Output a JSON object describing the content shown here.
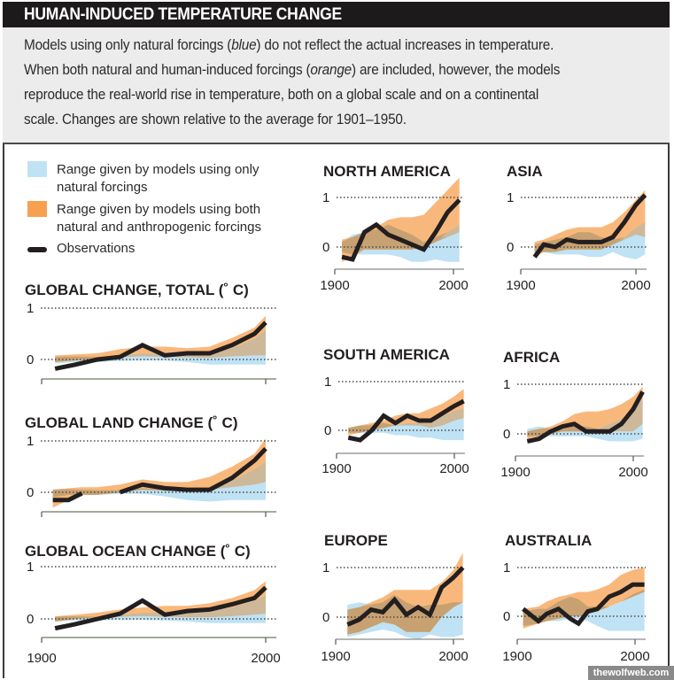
{
  "header": {
    "title": "HUMAN-INDUCED TEMPERATURE CHANGE",
    "description_lines": [
      [
        "Models using only natural forcings (",
        "blue",
        ") do not reflect the actual increases in temperature."
      ],
      [
        "When both natural and human-induced forcings (",
        "orange",
        ") are included, however, the models"
      ],
      [
        "reproduce the real-world rise in temperature, both on a global scale and on a continental",
        "",
        ""
      ],
      [
        "scale. Changes are shown relative to the average for 1901–1950.",
        "",
        ""
      ]
    ]
  },
  "legend": {
    "items": [
      {
        "label_lines": [
          "Range given by models using only",
          "natural forcings"
        ],
        "color": "#bfe3f5",
        "kind": "natural"
      },
      {
        "label_lines": [
          "Range given by models using both",
          "natural and anthropogenic forcings"
        ],
        "color": "#f7a04f",
        "kind": "anthropogenic"
      },
      {
        "label_lines": [
          "Observations"
        ],
        "color": "#231f20",
        "kind": "observations"
      }
    ]
  },
  "colors": {
    "natural": "#aad8f0",
    "anthropogenic": "#f7a04f",
    "overlap": "#b89a6e",
    "observations": "#231f20",
    "gridline": "#4a4a4a",
    "axis": "#6b7a5a"
  },
  "watermark": "thewolfweb.com",
  "chart_data": [
    {
      "type": "area",
      "id": "global-total",
      "title": "GLOBAL CHANGE, TOTAL (˚ C)",
      "xlabel": "",
      "ylabel": "˚C",
      "xlim": [
        1900,
        2000
      ],
      "ylim": [
        0,
        1
      ],
      "y_ticks": [
        0,
        1
      ],
      "x_ticks": [],
      "x": [
        1906,
        1915,
        1925,
        1935,
        1945,
        1955,
        1965,
        1975,
        1985,
        1995,
        2000
      ],
      "series": [
        {
          "name": "Observations",
          "values": [
            -0.18,
            -0.1,
            0.0,
            0.05,
            0.28,
            0.08,
            0.12,
            0.12,
            0.28,
            0.5,
            0.72
          ]
        },
        {
          "name": "Natural+anthropogenic range",
          "lower": [
            -0.05,
            -0.02,
            0.02,
            0.08,
            0.12,
            0.1,
            0.1,
            0.1,
            0.22,
            0.4,
            0.58
          ],
          "upper": [
            0.08,
            0.1,
            0.12,
            0.2,
            0.25,
            0.25,
            0.22,
            0.25,
            0.42,
            0.62,
            0.85
          ]
        },
        {
          "name": "Natural range",
          "lower": [
            -0.08,
            -0.05,
            -0.05,
            -0.03,
            -0.02,
            -0.02,
            -0.05,
            -0.1,
            -0.1,
            -0.1,
            -0.1
          ],
          "upper": [
            0.05,
            0.06,
            0.05,
            0.04,
            0.06,
            0.05,
            0.04,
            0.03,
            0.06,
            0.08,
            0.08
          ]
        }
      ]
    },
    {
      "type": "area",
      "id": "global-land",
      "title": "GLOBAL LAND CHANGE (˚ C)",
      "xlim": [
        1900,
        2000
      ],
      "ylim": [
        0,
        1
      ],
      "y_ticks": [
        0,
        1
      ],
      "x_ticks": [],
      "x": [
        1905,
        1912,
        1918,
        1925,
        1935,
        1945,
        1955,
        1965,
        1975,
        1985,
        1995,
        2000
      ],
      "series": [
        {
          "name": "Observations",
          "values": [
            -0.15,
            -0.15,
            -0.02,
            null,
            0.0,
            0.15,
            0.08,
            0.05,
            0.05,
            0.28,
            0.62,
            0.85
          ]
        },
        {
          "name": "Natural+anthropogenic range",
          "lower": [
            -0.3,
            -0.15,
            -0.05,
            -0.05,
            0.0,
            0.05,
            0.03,
            0.02,
            0.05,
            0.22,
            0.45,
            0.6
          ],
          "upper": [
            0.05,
            0.08,
            0.1,
            0.1,
            0.15,
            0.25,
            0.2,
            0.2,
            0.3,
            0.5,
            0.75,
            1.05
          ]
        },
        {
          "name": "Natural range",
          "lower": [
            -0.1,
            -0.05,
            -0.05,
            -0.05,
            -0.03,
            -0.03,
            -0.08,
            -0.15,
            -0.18,
            -0.15,
            -0.15,
            -0.15
          ],
          "upper": [
            0.06,
            0.06,
            0.05,
            0.04,
            0.04,
            0.08,
            0.05,
            0.05,
            0.05,
            0.1,
            0.15,
            0.2
          ]
        }
      ]
    },
    {
      "type": "area",
      "id": "global-ocean",
      "title": "GLOBAL OCEAN CHANGE (˚ C)",
      "xlim": [
        1900,
        2000
      ],
      "ylim": [
        0,
        1
      ],
      "y_ticks": [
        0,
        1
      ],
      "x_ticks": [
        "1900",
        "2000"
      ],
      "x": [
        1906,
        1915,
        1925,
        1935,
        1945,
        1955,
        1965,
        1975,
        1985,
        1995,
        2000
      ],
      "series": [
        {
          "name": "Observations",
          "values": [
            -0.18,
            -0.1,
            0.0,
            0.1,
            0.35,
            0.08,
            0.15,
            0.18,
            0.28,
            0.4,
            0.6
          ]
        },
        {
          "name": "Natural+anthropogenic range",
          "lower": [
            -0.05,
            0.0,
            0.03,
            0.08,
            0.12,
            0.12,
            0.12,
            0.15,
            0.22,
            0.35,
            0.45
          ],
          "upper": [
            0.05,
            0.08,
            0.12,
            0.18,
            0.22,
            0.25,
            0.25,
            0.3,
            0.4,
            0.55,
            0.72
          ]
        },
        {
          "name": "Natural range",
          "lower": [
            -0.05,
            -0.03,
            -0.03,
            -0.02,
            -0.02,
            -0.03,
            -0.05,
            -0.08,
            -0.08,
            -0.08,
            -0.08
          ],
          "upper": [
            0.04,
            0.05,
            0.04,
            0.04,
            0.05,
            0.04,
            0.03,
            0.03,
            0.05,
            0.08,
            0.1
          ]
        }
      ]
    },
    {
      "type": "area",
      "id": "north-america",
      "title": "NORTH AMERICA",
      "xlim": [
        1900,
        2000
      ],
      "ylim": [
        0,
        1
      ],
      "y_ticks": [
        0,
        1
      ],
      "x_ticks": [
        "1900",
        "2000"
      ],
      "x": [
        1906,
        1915,
        1925,
        1935,
        1945,
        1955,
        1965,
        1975,
        1985,
        1995,
        2005
      ],
      "series": [
        {
          "name": "Observations",
          "values": [
            -0.2,
            -0.25,
            0.3,
            0.45,
            0.25,
            0.15,
            0.05,
            -0.05,
            0.3,
            0.7,
            0.95
          ]
        },
        {
          "name": "Natural+anthropogenic range",
          "lower": [
            -0.3,
            -0.2,
            -0.05,
            -0.05,
            -0.05,
            -0.05,
            -0.05,
            0.0,
            0.1,
            0.3,
            0.45
          ],
          "upper": [
            0.15,
            0.2,
            0.3,
            0.4,
            0.55,
            0.6,
            0.6,
            0.65,
            0.9,
            1.15,
            1.4
          ]
        },
        {
          "name": "Natural range",
          "lower": [
            -0.1,
            -0.15,
            -0.15,
            -0.15,
            -0.15,
            -0.2,
            -0.3,
            -0.3,
            -0.25,
            -0.3,
            -0.3
          ],
          "upper": [
            0.1,
            0.25,
            0.3,
            0.35,
            0.45,
            0.35,
            0.25,
            0.1,
            0.2,
            0.2,
            0.3
          ]
        }
      ]
    },
    {
      "type": "area",
      "id": "asia",
      "title": "ASIA",
      "xlim": [
        1900,
        2000
      ],
      "ylim": [
        0,
        1
      ],
      "y_ticks": [
        0,
        1
      ],
      "x_ticks": [
        "1900",
        "2000"
      ],
      "x": [
        1912,
        1920,
        1930,
        1940,
        1950,
        1960,
        1970,
        1980,
        1990,
        2000,
        2008
      ],
      "series": [
        {
          "name": "Observations",
          "values": [
            -0.2,
            0.05,
            0.0,
            0.15,
            0.1,
            0.1,
            0.1,
            0.2,
            0.5,
            0.85,
            1.05
          ]
        },
        {
          "name": "Natural+anthropogenic range",
          "lower": [
            -0.2,
            -0.1,
            -0.1,
            -0.05,
            -0.05,
            -0.05,
            -0.05,
            0.05,
            0.2,
            0.4,
            0.5
          ],
          "upper": [
            0.1,
            0.15,
            0.25,
            0.35,
            0.4,
            0.4,
            0.4,
            0.5,
            0.7,
            0.95,
            1.15
          ]
        },
        {
          "name": "Natural range",
          "lower": [
            -0.1,
            -0.1,
            -0.15,
            -0.15,
            -0.15,
            -0.2,
            -0.2,
            -0.1,
            -0.2,
            -0.25,
            -0.15
          ],
          "upper": [
            0.05,
            0.1,
            0.15,
            0.2,
            0.3,
            0.3,
            0.2,
            0.15,
            0.15,
            0.25,
            0.2
          ]
        }
      ]
    },
    {
      "type": "area",
      "id": "south-america",
      "title": "SOUTH AMERICA",
      "xlim": [
        1900,
        2000
      ],
      "ylim": [
        0,
        1
      ],
      "y_ticks": [
        0,
        1
      ],
      "x_ticks": [
        "1900",
        "2000"
      ],
      "x": [
        1910,
        1920,
        1930,
        1940,
        1950,
        1960,
        1970,
        1980,
        1990,
        2000,
        2008
      ],
      "series": [
        {
          "name": "Observations",
          "values": [
            -0.15,
            -0.2,
            0.0,
            0.3,
            0.15,
            0.3,
            0.2,
            0.2,
            0.35,
            0.5,
            0.6
          ]
        },
        {
          "name": "Natural+anthropogenic range",
          "lower": [
            -0.1,
            -0.05,
            0.0,
            0.05,
            0.1,
            0.15,
            0.15,
            0.2,
            0.3,
            0.4,
            0.45
          ],
          "upper": [
            0.05,
            0.1,
            0.15,
            0.2,
            0.3,
            0.35,
            0.35,
            0.45,
            0.55,
            0.7,
            0.85
          ]
        },
        {
          "name": "Natural range",
          "lower": [
            -0.05,
            -0.05,
            -0.05,
            -0.05,
            -0.1,
            -0.1,
            -0.15,
            -0.15,
            -0.2,
            -0.2,
            -0.2
          ],
          "upper": [
            0.05,
            0.1,
            0.1,
            0.15,
            0.1,
            0.1,
            0.1,
            0.05,
            0.1,
            0.2,
            0.25
          ]
        }
      ]
    },
    {
      "type": "area",
      "id": "africa",
      "title": "AFRICA",
      "xlim": [
        1900,
        2000
      ],
      "ylim": [
        0,
        1
      ],
      "y_ticks": [
        0,
        1
      ],
      "x_ticks": [
        "1900",
        "2000"
      ],
      "x": [
        1910,
        1920,
        1930,
        1940,
        1950,
        1960,
        1970,
        1980,
        1990,
        2000,
        2008
      ],
      "series": [
        {
          "name": "Observations",
          "values": [
            -0.15,
            -0.1,
            0.05,
            0.15,
            0.2,
            0.05,
            0.05,
            0.05,
            0.2,
            0.5,
            0.85
          ]
        },
        {
          "name": "Natural+anthropogenic range",
          "lower": [
            -0.1,
            -0.05,
            0.0,
            0.05,
            0.05,
            0.05,
            0.1,
            0.2,
            0.3,
            0.5,
            0.7
          ],
          "upper": [
            0.05,
            0.1,
            0.15,
            0.25,
            0.4,
            0.45,
            0.45,
            0.5,
            0.6,
            0.75,
            0.95
          ]
        },
        {
          "name": "Natural range",
          "lower": [
            -0.05,
            -0.05,
            -0.05,
            -0.05,
            -0.05,
            -0.05,
            -0.1,
            -0.15,
            -0.15,
            -0.15,
            -0.1
          ],
          "upper": [
            0.1,
            0.15,
            0.1,
            0.1,
            0.15,
            0.15,
            0.1,
            0.05,
            0.05,
            0.05,
            0.2
          ]
        }
      ]
    },
    {
      "type": "area",
      "id": "europe",
      "title": "EUROPE",
      "xlim": [
        1900,
        2000
      ],
      "ylim": [
        0,
        1
      ],
      "y_ticks": [
        0,
        1
      ],
      "x_ticks": [
        "1900",
        "2000"
      ],
      "x": [
        1910,
        1920,
        1930,
        1940,
        1950,
        1960,
        1970,
        1980,
        1990,
        2000,
        2008
      ],
      "series": [
        {
          "name": "Observations",
          "values": [
            -0.15,
            -0.05,
            0.15,
            0.1,
            0.35,
            0.05,
            0.2,
            0.05,
            0.6,
            0.8,
            1.0
          ]
        },
        {
          "name": "Natural+anthropogenic range",
          "lower": [
            -0.35,
            -0.3,
            -0.2,
            -0.1,
            -0.15,
            -0.3,
            -0.3,
            -0.3,
            0.0,
            0.2,
            0.3
          ],
          "upper": [
            0.15,
            0.2,
            0.3,
            0.4,
            0.55,
            0.55,
            0.55,
            0.55,
            0.7,
            0.95,
            1.3
          ]
        },
        {
          "name": "Natural range",
          "lower": [
            -0.4,
            -0.35,
            -0.3,
            -0.25,
            -0.3,
            -0.4,
            -0.45,
            -0.35,
            -0.4,
            -0.4,
            -0.35
          ],
          "upper": [
            0.25,
            0.3,
            0.25,
            0.3,
            0.45,
            0.3,
            0.2,
            0.25,
            0.25,
            0.3,
            0.3
          ]
        }
      ]
    },
    {
      "type": "area",
      "id": "australia",
      "title": "AUSTRALIA",
      "xlim": [
        1900,
        2000
      ],
      "ylim": [
        0,
        1
      ],
      "y_ticks": [
        0,
        1
      ],
      "x_ticks": [
        "1900",
        "2000"
      ],
      "x": [
        1905,
        1918,
        1925,
        1935,
        1945,
        1952,
        1960,
        1968,
        1978,
        1988,
        1998,
        2008
      ],
      "series": [
        {
          "name": "Observations",
          "values": [
            0.15,
            -0.1,
            0.05,
            0.15,
            -0.05,
            -0.15,
            0.1,
            0.15,
            0.4,
            0.5,
            0.65,
            0.65
          ]
        },
        {
          "name": "Natural+anthropogenic range",
          "lower": [
            -0.25,
            -0.15,
            -0.1,
            -0.05,
            0.0,
            0.0,
            0.05,
            0.1,
            0.2,
            0.3,
            0.4,
            0.5
          ],
          "upper": [
            0.15,
            0.2,
            0.3,
            0.4,
            0.45,
            0.5,
            0.5,
            0.55,
            0.65,
            0.85,
            0.95,
            1.0
          ]
        },
        {
          "name": "Natural range",
          "lower": [
            -0.2,
            -0.15,
            -0.1,
            -0.1,
            -0.05,
            -0.05,
            -0.1,
            -0.2,
            -0.3,
            -0.3,
            -0.3,
            -0.3
          ],
          "upper": [
            0.1,
            0.15,
            0.15,
            0.3,
            0.4,
            0.35,
            0.2,
            0.2,
            0.2,
            0.3,
            0.45,
            0.55
          ]
        }
      ]
    }
  ]
}
